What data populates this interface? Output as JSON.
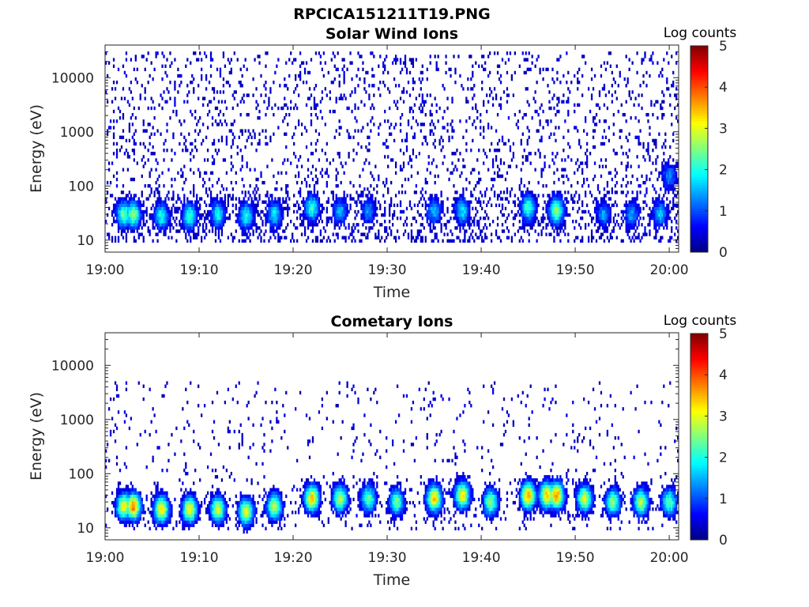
{
  "figure_title": "RPCICA151211T19.PNG",
  "colorbar": {
    "label": "Log counts",
    "range": [
      0,
      5
    ],
    "ticks": [
      "0",
      "1",
      "2",
      "3",
      "4",
      "5"
    ],
    "colormap": "jet"
  },
  "chart_data": [
    {
      "type": "heatmap",
      "title": "Solar Wind Ions",
      "xlabel": "Time",
      "ylabel": "Energy (eV)",
      "xtick_labels": [
        "19:00",
        "19:10",
        "19:20",
        "19:30",
        "19:40",
        "19:50",
        "20:00"
      ],
      "xlim": [
        "19:00",
        "20:01"
      ],
      "ytick_labels": [
        "10",
        "100",
        "1000",
        "10000"
      ],
      "ylim": [
        6,
        40000
      ],
      "yscale": "log",
      "color_value": "Log counts",
      "color_range": [
        0,
        5
      ],
      "background_counts": "scattered single counts (log ~0–0.5) from 10 eV to 30 keV",
      "bursts": [
        {
          "time": "19:02",
          "energy_peak": 30,
          "log_counts": 2.4
        },
        {
          "time": "19:03",
          "energy_peak": 30,
          "log_counts": 2.6
        },
        {
          "time": "19:06",
          "energy_peak": 28,
          "log_counts": 2.0
        },
        {
          "time": "19:09",
          "energy_peak": 28,
          "log_counts": 2.2
        },
        {
          "time": "19:12",
          "energy_peak": 30,
          "log_counts": 1.9
        },
        {
          "time": "19:15",
          "energy_peak": 28,
          "log_counts": 2.0
        },
        {
          "time": "19:18",
          "energy_peak": 30,
          "log_counts": 1.8
        },
        {
          "time": "19:22",
          "energy_peak": 40,
          "log_counts": 2.1
        },
        {
          "time": "19:25",
          "energy_peak": 35,
          "log_counts": 1.5
        },
        {
          "time": "19:28",
          "energy_peak": 35,
          "log_counts": 1.4
        },
        {
          "time": "19:35",
          "energy_peak": 35,
          "log_counts": 1.6
        },
        {
          "time": "19:38",
          "energy_peak": 35,
          "log_counts": 1.8
        },
        {
          "time": "19:45",
          "energy_peak": 40,
          "log_counts": 2.2
        },
        {
          "time": "19:48",
          "energy_peak": 35,
          "log_counts": 2.6
        },
        {
          "time": "19:53",
          "energy_peak": 30,
          "log_counts": 1.4
        },
        {
          "time": "19:56",
          "energy_peak": 30,
          "log_counts": 1.4
        },
        {
          "time": "19:59",
          "energy_peak": 30,
          "log_counts": 1.6
        },
        {
          "time": "20:00",
          "energy_peak": 150,
          "log_counts": 1.3
        }
      ]
    },
    {
      "type": "heatmap",
      "title": "Cometary Ions",
      "xlabel": "Time",
      "ylabel": "Energy (eV)",
      "xtick_labels": [
        "19:00",
        "19:10",
        "19:20",
        "19:30",
        "19:40",
        "19:50",
        "20:00"
      ],
      "xlim": [
        "19:00",
        "20:01"
      ],
      "ytick_labels": [
        "10",
        "100",
        "1000",
        "10000"
      ],
      "ylim": [
        6,
        40000
      ],
      "yscale": "log",
      "color_value": "Log counts",
      "color_range": [
        0,
        5
      ],
      "background_counts": "sparse counts (log ~0–0.5) from 10 eV to 5 keV",
      "bursts": [
        {
          "time": "19:02",
          "energy_peak": 25,
          "log_counts": 3.1
        },
        {
          "time": "19:03",
          "energy_peak": 25,
          "log_counts": 3.8
        },
        {
          "time": "19:06",
          "energy_peak": 22,
          "log_counts": 3.3
        },
        {
          "time": "19:09",
          "energy_peak": 22,
          "log_counts": 3.2
        },
        {
          "time": "19:12",
          "energy_peak": 22,
          "log_counts": 3.0
        },
        {
          "time": "19:15",
          "energy_peak": 20,
          "log_counts": 3.0
        },
        {
          "time": "19:18",
          "energy_peak": 25,
          "log_counts": 2.8
        },
        {
          "time": "19:22",
          "energy_peak": 35,
          "log_counts": 3.4
        },
        {
          "time": "19:25",
          "energy_peak": 35,
          "log_counts": 2.8
        },
        {
          "time": "19:28",
          "energy_peak": 35,
          "log_counts": 2.4
        },
        {
          "time": "19:31",
          "energy_peak": 30,
          "log_counts": 2.5
        },
        {
          "time": "19:35",
          "energy_peak": 35,
          "log_counts": 3.4
        },
        {
          "time": "19:38",
          "energy_peak": 40,
          "log_counts": 3.2
        },
        {
          "time": "19:41",
          "energy_peak": 30,
          "log_counts": 2.6
        },
        {
          "time": "19:45",
          "energy_peak": 40,
          "log_counts": 3.6
        },
        {
          "time": "19:47",
          "energy_peak": 40,
          "log_counts": 3.4
        },
        {
          "time": "19:48",
          "energy_peak": 40,
          "log_counts": 3.7
        },
        {
          "time": "19:51",
          "energy_peak": 35,
          "log_counts": 3.0
        },
        {
          "time": "19:54",
          "energy_peak": 30,
          "log_counts": 2.6
        },
        {
          "time": "19:57",
          "energy_peak": 30,
          "log_counts": 2.8
        },
        {
          "time": "20:00",
          "energy_peak": 30,
          "log_counts": 2.4
        }
      ]
    }
  ]
}
